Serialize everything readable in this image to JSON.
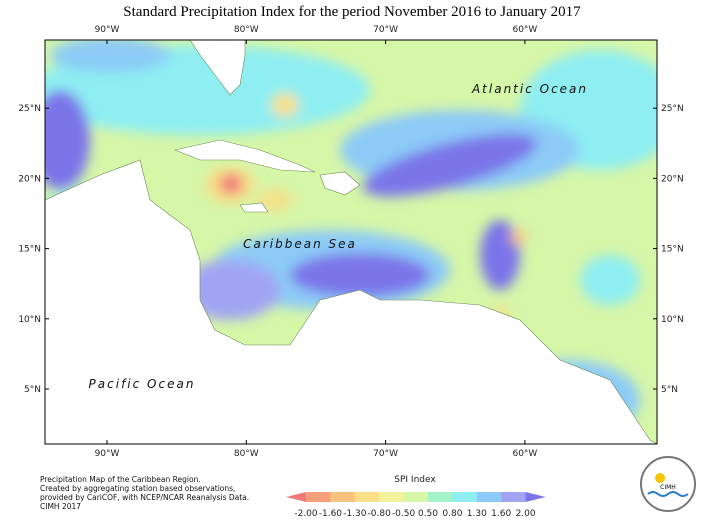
{
  "title": "Standard Precipitation Index for the period November 2016 to January 2017",
  "lon_ticks": [
    "90°W",
    "80°W",
    "70°W",
    "60°W"
  ],
  "lat_ticks": [
    "5°N",
    "10°N",
    "15°N",
    "20°N",
    "25°N"
  ],
  "labels": {
    "atlantic": "Atlantic Ocean",
    "caribbean": "Caribbean Sea",
    "pacific": "Pacific Ocean"
  },
  "footnote": [
    "Precipitation Map of the Caribbean Region.",
    "Created by aggregating station based observations,",
    "provided by CariCOF, with NCEP/NCAR Reanalysis Data.",
    "CIMH 2017"
  ],
  "legend": {
    "title": "SPI Index",
    "ticks": [
      "-2.00",
      "-1.60",
      "-1.30",
      "-0.80",
      "-0.50",
      "0.50",
      "0.80",
      "1.30",
      "1.60",
      "2.00"
    ],
    "colors": [
      "#f07a7a",
      "#f5a07a",
      "#f7c27e",
      "#f8df88",
      "#f3f39c",
      "#d6f6a8",
      "#a4f2c9",
      "#8eeef2",
      "#8ccbf7",
      "#a2a4f3",
      "#7c74ea"
    ]
  },
  "logo": "CIMH"
}
